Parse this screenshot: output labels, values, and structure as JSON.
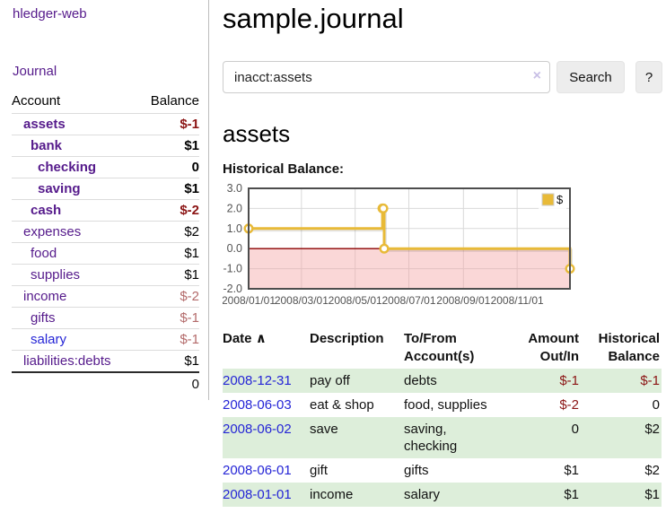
{
  "app": {
    "brand": "hledger-web"
  },
  "sidebar": {
    "journal_label": "Journal",
    "accounts_table": {
      "account_header": "Account",
      "balance_header": "Balance",
      "rows": [
        {
          "name": "assets",
          "balance": "$-1",
          "depth": 1,
          "emphasis": true,
          "balance_tone": "negative-strong",
          "link_tone": "purple"
        },
        {
          "name": "bank",
          "balance": "$1",
          "depth": 2,
          "emphasis": true,
          "balance_tone": "normal",
          "link_tone": "purple"
        },
        {
          "name": "checking",
          "balance": "0",
          "depth": 3,
          "emphasis": true,
          "balance_tone": "normal",
          "link_tone": "purple"
        },
        {
          "name": "saving",
          "balance": "$1",
          "depth": 3,
          "emphasis": true,
          "balance_tone": "normal",
          "link_tone": "purple"
        },
        {
          "name": "cash",
          "balance": "$-2",
          "depth": 2,
          "emphasis": true,
          "balance_tone": "negative-strong",
          "link_tone": "purple"
        },
        {
          "name": "expenses",
          "balance": "$2",
          "depth": 1,
          "emphasis": false,
          "balance_tone": "normal",
          "link_tone": "purple"
        },
        {
          "name": "food",
          "balance": "$1",
          "depth": 2,
          "emphasis": false,
          "balance_tone": "normal",
          "link_tone": "purple"
        },
        {
          "name": "supplies",
          "balance": "$1",
          "depth": 2,
          "emphasis": false,
          "balance_tone": "normal",
          "link_tone": "purple"
        },
        {
          "name": "income",
          "balance": "$-2",
          "depth": 1,
          "emphasis": false,
          "balance_tone": "negative-weak",
          "link_tone": "purple"
        },
        {
          "name": "gifts",
          "balance": "$-1",
          "depth": 2,
          "emphasis": false,
          "balance_tone": "negative-weak",
          "link_tone": "purple"
        },
        {
          "name": "salary",
          "balance": "$-1",
          "depth": 2,
          "emphasis": false,
          "balance_tone": "negative-weak",
          "link_tone": "blue"
        },
        {
          "name": "liabilities:debts",
          "balance": "$1",
          "depth": 1,
          "emphasis": false,
          "balance_tone": "normal",
          "link_tone": "purple"
        }
      ],
      "total": "0"
    }
  },
  "main": {
    "title": "sample.journal",
    "search": {
      "value": "inacct:assets",
      "clear_icon": "×",
      "button_label": "Search",
      "help_label": "?"
    },
    "account_heading": "assets",
    "chart_label": "Historical Balance:",
    "register_table": {
      "headers": {
        "date": "Date",
        "sort_icon": "∧",
        "description": "Description",
        "accounts": "To/From Account(s)",
        "amount": "Amount Out/In",
        "balance": "Historical Balance"
      },
      "rows": [
        {
          "date": "2008-12-31",
          "description": "pay off",
          "accounts": "debts",
          "amount": "$-1",
          "balance": "$-1",
          "amount_negative": true,
          "balance_negative": true
        },
        {
          "date": "2008-06-03",
          "description": "eat & shop",
          "accounts": "food, supplies",
          "amount": "$-2",
          "balance": "0",
          "amount_negative": true,
          "balance_negative": false
        },
        {
          "date": "2008-06-02",
          "description": "save",
          "accounts": "saving, checking",
          "amount": "0",
          "balance": "$2",
          "amount_negative": false,
          "balance_negative": false
        },
        {
          "date": "2008-06-01",
          "description": "gift",
          "accounts": "gifts",
          "amount": "$1",
          "balance": "$2",
          "amount_negative": false,
          "balance_negative": false
        },
        {
          "date": "2008-01-01",
          "description": "income",
          "accounts": "salary",
          "amount": "$1",
          "balance": "$1",
          "amount_negative": false,
          "balance_negative": false
        }
      ]
    }
  },
  "chart_data": {
    "type": "line",
    "step": true,
    "title": "Historical Balance",
    "series": [
      {
        "name": "$",
        "color": "#e8ba38",
        "points": [
          [
            "2008-01-01",
            1.0
          ],
          [
            "2008-06-01",
            2.0
          ],
          [
            "2008-06-02",
            2.0
          ],
          [
            "2008-06-03",
            0.0
          ],
          [
            "2008-12-31",
            -1.0
          ]
        ]
      }
    ],
    "x_range": [
      "2008-01-01",
      "2008-12-31"
    ],
    "x_ticks": [
      "2008/01/01",
      "2008/03/01",
      "2008/05/01",
      "2008/07/01",
      "2008/09/01",
      "2008/11/01"
    ],
    "y_ticks": [
      3.0,
      2.0,
      1.0,
      0.0,
      -1.0,
      -2.0
    ],
    "ylim": [
      -2.0,
      3.0
    ],
    "grid": true,
    "legend": {
      "label": "$",
      "position": "top-right"
    },
    "zero_line_color": "#8b0000",
    "negative_region_color": "#f4a0a0",
    "tick_label_color": "#545454",
    "border_color": "#4d4d4d"
  }
}
